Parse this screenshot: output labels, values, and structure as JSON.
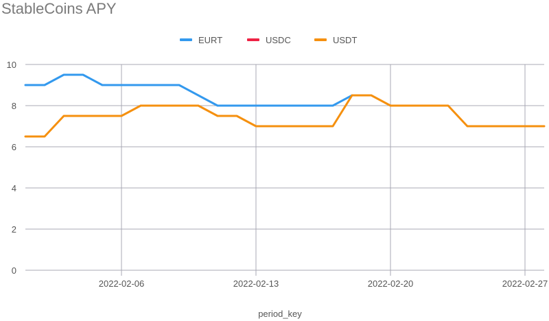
{
  "chart_data": {
    "type": "line",
    "title": "StableCoins APY",
    "xlabel": "period_key",
    "ylabel": "",
    "ylim": [
      0,
      10
    ],
    "xlim": [
      "2022-02-01",
      "2022-02-28"
    ],
    "y_ticks": [
      "0",
      "2",
      "4",
      "6",
      "8",
      "10"
    ],
    "x_ticks": [
      "2022-02-06",
      "2022-02-13",
      "2022-02-20",
      "2022-02-27"
    ],
    "legend_position": "top-center",
    "grid": true,
    "series": [
      {
        "name": "EURT",
        "color": "#3399ee",
        "points": [
          {
            "x": "2022-02-01",
            "y": 9
          },
          {
            "x": "2022-02-02",
            "y": 9
          },
          {
            "x": "2022-02-03",
            "y": 9.5
          },
          {
            "x": "2022-02-04",
            "y": 9.5
          },
          {
            "x": "2022-02-05",
            "y": 9
          },
          {
            "x": "2022-02-06",
            "y": 9
          },
          {
            "x": "2022-02-07",
            "y": 9
          },
          {
            "x": "2022-02-08",
            "y": 9
          },
          {
            "x": "2022-02-09",
            "y": 9
          },
          {
            "x": "2022-02-11",
            "y": 8
          },
          {
            "x": "2022-02-12",
            "y": 8
          },
          {
            "x": "2022-02-13",
            "y": 8
          },
          {
            "x": "2022-02-14",
            "y": 8
          },
          {
            "x": "2022-02-15",
            "y": 8
          },
          {
            "x": "2022-02-16",
            "y": 8
          },
          {
            "x": "2022-02-17",
            "y": 8
          },
          {
            "x": "2022-02-18",
            "y": 8.5
          }
        ]
      },
      {
        "name": "USDC",
        "color": "#ee2244",
        "points": []
      },
      {
        "name": "USDT",
        "color": "#f5900f",
        "points": [
          {
            "x": "2022-02-01",
            "y": 6.5
          },
          {
            "x": "2022-02-02",
            "y": 6.5
          },
          {
            "x": "2022-02-03",
            "y": 7.5
          },
          {
            "x": "2022-02-04",
            "y": 7.5
          },
          {
            "x": "2022-02-05",
            "y": 7.5
          },
          {
            "x": "2022-02-06",
            "y": 7.5
          },
          {
            "x": "2022-02-07",
            "y": 8
          },
          {
            "x": "2022-02-08",
            "y": 8
          },
          {
            "x": "2022-02-09",
            "y": 8
          },
          {
            "x": "2022-02-10",
            "y": 8
          },
          {
            "x": "2022-02-11",
            "y": 7.5
          },
          {
            "x": "2022-02-12",
            "y": 7.5
          },
          {
            "x": "2022-02-13",
            "y": 7
          },
          {
            "x": "2022-02-14",
            "y": 7
          },
          {
            "x": "2022-02-15",
            "y": 7
          },
          {
            "x": "2022-02-16",
            "y": 7
          },
          {
            "x": "2022-02-17",
            "y": 7
          },
          {
            "x": "2022-02-18",
            "y": 8.5
          },
          {
            "x": "2022-02-19",
            "y": 8.5
          },
          {
            "x": "2022-02-20",
            "y": 8
          },
          {
            "x": "2022-02-21",
            "y": 8
          },
          {
            "x": "2022-02-22",
            "y": 8
          },
          {
            "x": "2022-02-23",
            "y": 8
          },
          {
            "x": "2022-02-24",
            "y": 7
          },
          {
            "x": "2022-02-25",
            "y": 7
          },
          {
            "x": "2022-02-26",
            "y": 7
          },
          {
            "x": "2022-02-27",
            "y": 7
          },
          {
            "x": "2022-02-28",
            "y": 7
          }
        ]
      }
    ]
  }
}
